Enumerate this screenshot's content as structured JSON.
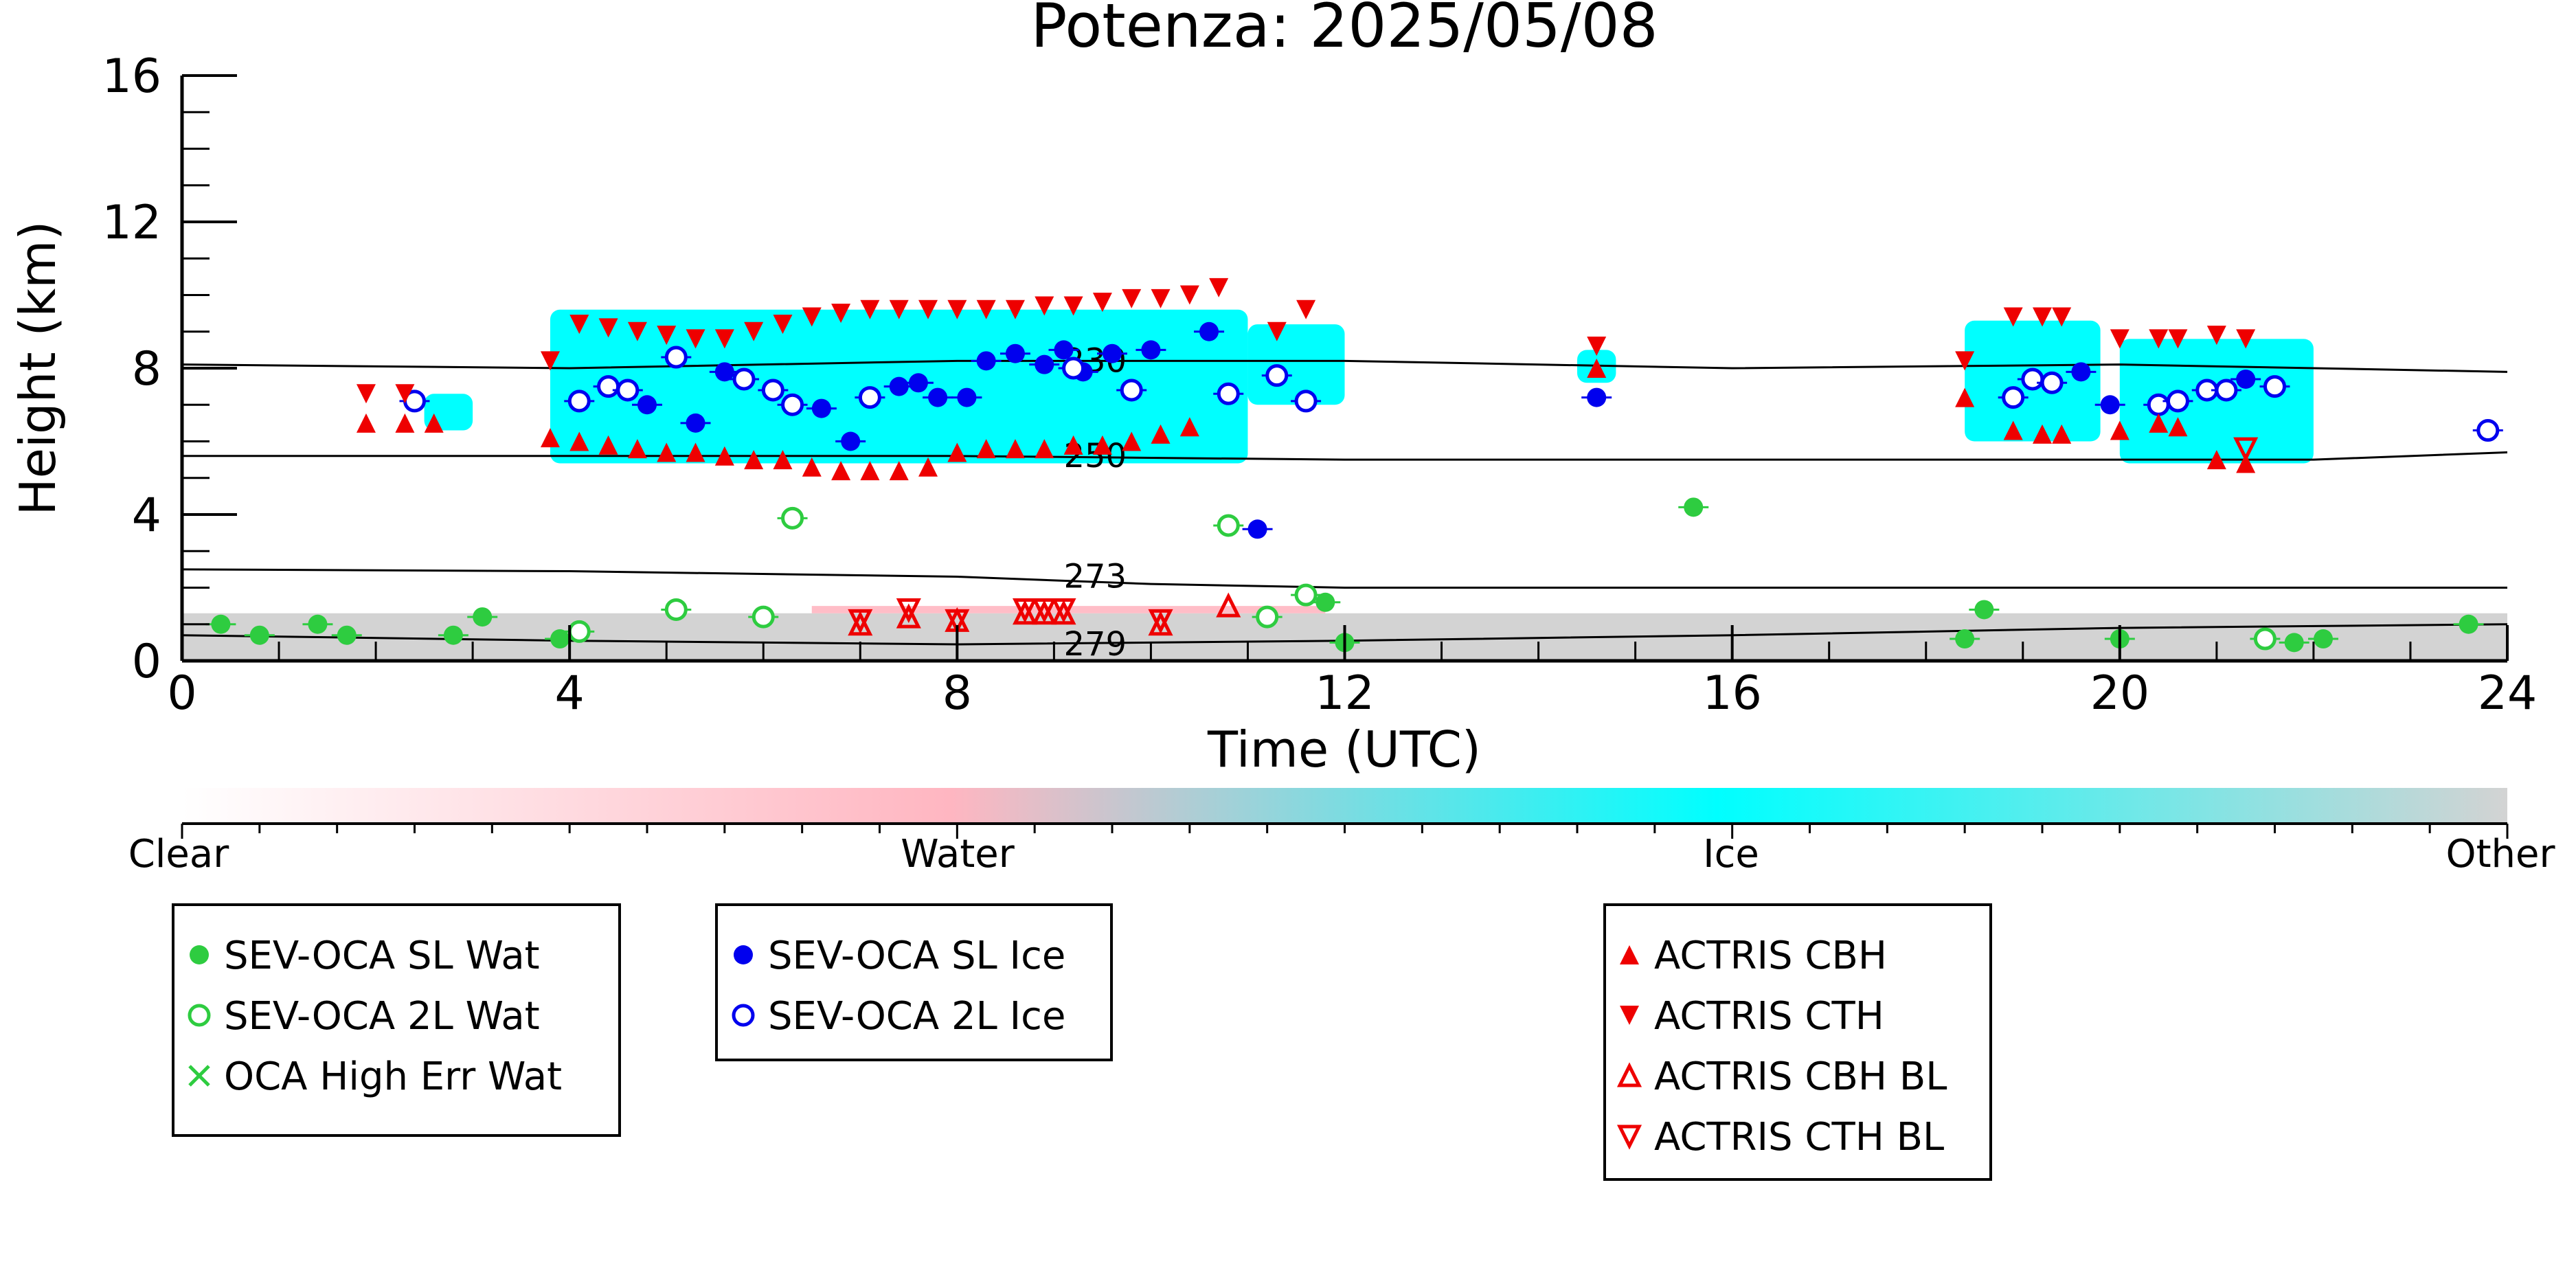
{
  "chart_data": {
    "type": "scatter",
    "title": "Potenza: 2025/05/08",
    "xlabel": "Time (UTC)",
    "ylabel": "Height (km)",
    "xlim": [
      0,
      24
    ],
    "ylim": [
      0,
      16
    ],
    "x_ticks": [
      0,
      4,
      8,
      12,
      16,
      20,
      24
    ],
    "y_ticks": [
      0,
      4,
      8,
      12,
      16
    ],
    "grid": false,
    "background_classification": {
      "description_classes": [
        "Clear",
        "Water",
        "Ice",
        "Other"
      ],
      "colors": {
        "Clear": "#ffffff",
        "Water": "#ffb6c1",
        "Ice": "#00ffff",
        "Other": "#d3d3d3"
      },
      "ice_segments": [
        {
          "x0": 2.5,
          "x1": 3.0,
          "ylo": 6.3,
          "yhi": 7.3
        },
        {
          "x0": 3.8,
          "x1": 11.0,
          "ylo": 5.4,
          "yhi": 9.6
        },
        {
          "x0": 11.0,
          "x1": 12.0,
          "ylo": 7.0,
          "yhi": 9.2
        },
        {
          "x0": 14.4,
          "x1": 14.8,
          "ylo": 7.6,
          "yhi": 8.5
        },
        {
          "x0": 18.4,
          "x1": 19.8,
          "ylo": 6.0,
          "yhi": 9.3
        },
        {
          "x0": 20.0,
          "x1": 22.0,
          "ylo": 5.4,
          "yhi": 8.8
        }
      ],
      "other_band_top": 1.3,
      "water_band_top": 1.5
    },
    "isotherms": [
      {
        "label": "230",
        "x": [
          0,
          4,
          8,
          12,
          16,
          20,
          24
        ],
        "y": [
          8.1,
          8.0,
          8.2,
          8.2,
          8.0,
          8.1,
          7.9
        ]
      },
      {
        "label": "250",
        "x": [
          0,
          4,
          8,
          12,
          16,
          20,
          22,
          24
        ],
        "y": [
          5.6,
          5.6,
          5.6,
          5.5,
          5.5,
          5.5,
          5.5,
          5.7
        ]
      },
      {
        "label": "273",
        "x": [
          0,
          4,
          8,
          10,
          12,
          14,
          16,
          20,
          24
        ],
        "y": [
          2.5,
          2.45,
          2.3,
          2.1,
          2.0,
          2.0,
          2.0,
          2.0,
          2.0
        ]
      },
      {
        "label": "279",
        "x": [
          0,
          4,
          8,
          12,
          16,
          20,
          24
        ],
        "y": [
          0.7,
          0.55,
          0.45,
          0.55,
          0.7,
          0.9,
          1.0
        ]
      }
    ],
    "series": [
      {
        "name": "SEV-OCA SL Wat",
        "marker": "filled-circle",
        "color": "#2ecc40",
        "x": [
          0.4,
          0.8,
          1.4,
          1.7,
          2.8,
          3.1,
          3.9,
          11.8,
          12.0,
          15.6,
          18.4,
          18.6,
          20.0,
          21.8,
          22.1,
          23.6
        ],
        "y": [
          1.0,
          0.7,
          1.0,
          0.7,
          0.7,
          1.2,
          0.6,
          1.6,
          0.5,
          4.2,
          0.6,
          1.4,
          0.6,
          0.5,
          0.6,
          1.0
        ]
      },
      {
        "name": "SEV-OCA 2L Wat",
        "marker": "open-circle",
        "color": "#2ecc40",
        "x": [
          4.1,
          5.1,
          6.0,
          6.3,
          10.8,
          11.2,
          11.6,
          21.5
        ],
        "y": [
          0.8,
          1.4,
          1.2,
          3.9,
          3.7,
          1.2,
          1.8,
          0.6
        ]
      },
      {
        "name": "OCA High Err Wat",
        "marker": "x",
        "color": "#2ecc40",
        "x": [],
        "y": []
      },
      {
        "name": "SEV-OCA SL Ice",
        "marker": "filled-circle",
        "color": "#0000ee",
        "x": [
          4.8,
          5.3,
          5.6,
          6.6,
          6.9,
          7.4,
          7.6,
          7.8,
          8.1,
          8.3,
          8.6,
          8.9,
          9.1,
          9.3,
          9.6,
          10.0,
          10.6,
          11.1,
          14.6,
          19.6,
          19.9,
          21.3
        ],
        "y": [
          7.0,
          6.5,
          7.9,
          6.9,
          6.0,
          7.5,
          7.6,
          7.2,
          7.2,
          8.2,
          8.4,
          8.1,
          8.5,
          7.9,
          8.4,
          8.5,
          9.0,
          3.6,
          7.2,
          7.9,
          7.0,
          7.7
        ]
      },
      {
        "name": "SEV-OCA 2L Ice",
        "marker": "open-circle",
        "color": "#0000ee",
        "x": [
          2.4,
          4.1,
          4.4,
          4.6,
          5.1,
          5.8,
          6.1,
          6.3,
          7.1,
          9.2,
          9.8,
          10.8,
          11.3,
          11.6,
          18.9,
          19.1,
          19.3,
          20.4,
          20.6,
          20.9,
          21.1,
          21.6,
          23.8
        ],
        "y": [
          7.1,
          7.1,
          7.5,
          7.4,
          8.3,
          7.7,
          7.4,
          7.0,
          7.2,
          8.0,
          7.4,
          7.3,
          7.8,
          7.1,
          7.2,
          7.7,
          7.6,
          7.0,
          7.1,
          7.4,
          7.4,
          7.5,
          6.3
        ]
      },
      {
        "name": "ACTRIS CBH",
        "marker": "triangle-up",
        "color": "#ee0000",
        "x": [
          1.9,
          2.3,
          2.6,
          3.8,
          4.1,
          4.4,
          4.7,
          5.0,
          5.3,
          5.6,
          5.9,
          6.2,
          6.5,
          6.8,
          7.1,
          7.4,
          7.7,
          8.0,
          8.3,
          8.6,
          8.9,
          9.2,
          9.5,
          9.8,
          10.1,
          10.4,
          14.6,
          18.4,
          18.9,
          19.2,
          19.4,
          20.0,
          20.4,
          20.6,
          21.0,
          21.3
        ],
        "y": [
          6.5,
          6.5,
          6.5,
          6.1,
          6.0,
          5.9,
          5.8,
          5.7,
          5.7,
          5.6,
          5.5,
          5.5,
          5.3,
          5.2,
          5.2,
          5.2,
          5.3,
          5.7,
          5.8,
          5.8,
          5.8,
          5.9,
          5.9,
          6.0,
          6.2,
          6.4,
          8.0,
          7.2,
          6.3,
          6.2,
          6.2,
          6.3,
          6.5,
          6.4,
          5.5,
          5.4
        ]
      },
      {
        "name": "ACTRIS CTH",
        "marker": "triangle-down",
        "color": "#ee0000",
        "x": [
          1.9,
          2.3,
          3.8,
          4.1,
          4.4,
          4.7,
          5.0,
          5.3,
          5.6,
          5.9,
          6.2,
          6.5,
          6.8,
          7.1,
          7.4,
          7.7,
          8.0,
          8.3,
          8.6,
          8.9,
          9.2,
          9.5,
          9.8,
          10.1,
          10.4,
          10.7,
          11.3,
          11.6,
          14.6,
          18.4,
          18.9,
          19.2,
          19.4,
          20.0,
          20.4,
          20.6,
          21.0,
          21.3
        ],
        "y": [
          7.3,
          7.3,
          8.2,
          9.2,
          9.1,
          9.0,
          8.9,
          8.8,
          8.8,
          9.0,
          9.2,
          9.4,
          9.5,
          9.6,
          9.6,
          9.6,
          9.6,
          9.6,
          9.6,
          9.7,
          9.7,
          9.8,
          9.9,
          9.9,
          10.0,
          10.2,
          9.0,
          9.6,
          8.6,
          8.2,
          9.4,
          9.4,
          9.4,
          8.8,
          8.8,
          8.8,
          8.9,
          8.8
        ]
      },
      {
        "name": "ACTRIS CBH BL",
        "marker": "open-triangle-up",
        "color": "#ee0000",
        "x": [
          7.0,
          7.5,
          8.0,
          8.7,
          8.9,
          9.1,
          10.1,
          10.8
        ],
        "y": [
          1.0,
          1.2,
          1.1,
          1.3,
          1.3,
          1.3,
          1.0,
          1.5
        ],
        "_note": "drawn as hourglass open triangles"
      },
      {
        "name": "ACTRIS CTH BL",
        "marker": "open-triangle-down",
        "color": "#ee0000",
        "x": [
          7.0,
          7.5,
          8.0,
          8.7,
          8.9,
          9.1,
          10.1,
          21.3
        ],
        "y": [
          1.1,
          1.4,
          1.1,
          1.4,
          1.4,
          1.4,
          1.1,
          5.8
        ]
      }
    ],
    "colorbar": {
      "labels": [
        "Clear",
        "Water",
        "Ice",
        "Other"
      ],
      "colors": [
        "#ffffff",
        "#ffb6c1",
        "#00ffff",
        "#d3d3d3"
      ]
    },
    "legends": [
      [
        "SEV-OCA SL Wat",
        "SEV-OCA 2L Wat",
        "OCA High Err Wat"
      ],
      [
        "SEV-OCA SL Ice",
        "SEV-OCA 2L Ice"
      ],
      [
        "ACTRIS CBH",
        "ACTRIS CTH",
        "ACTRIS CBH BL",
        "ACTRIS CTH BL"
      ]
    ]
  }
}
